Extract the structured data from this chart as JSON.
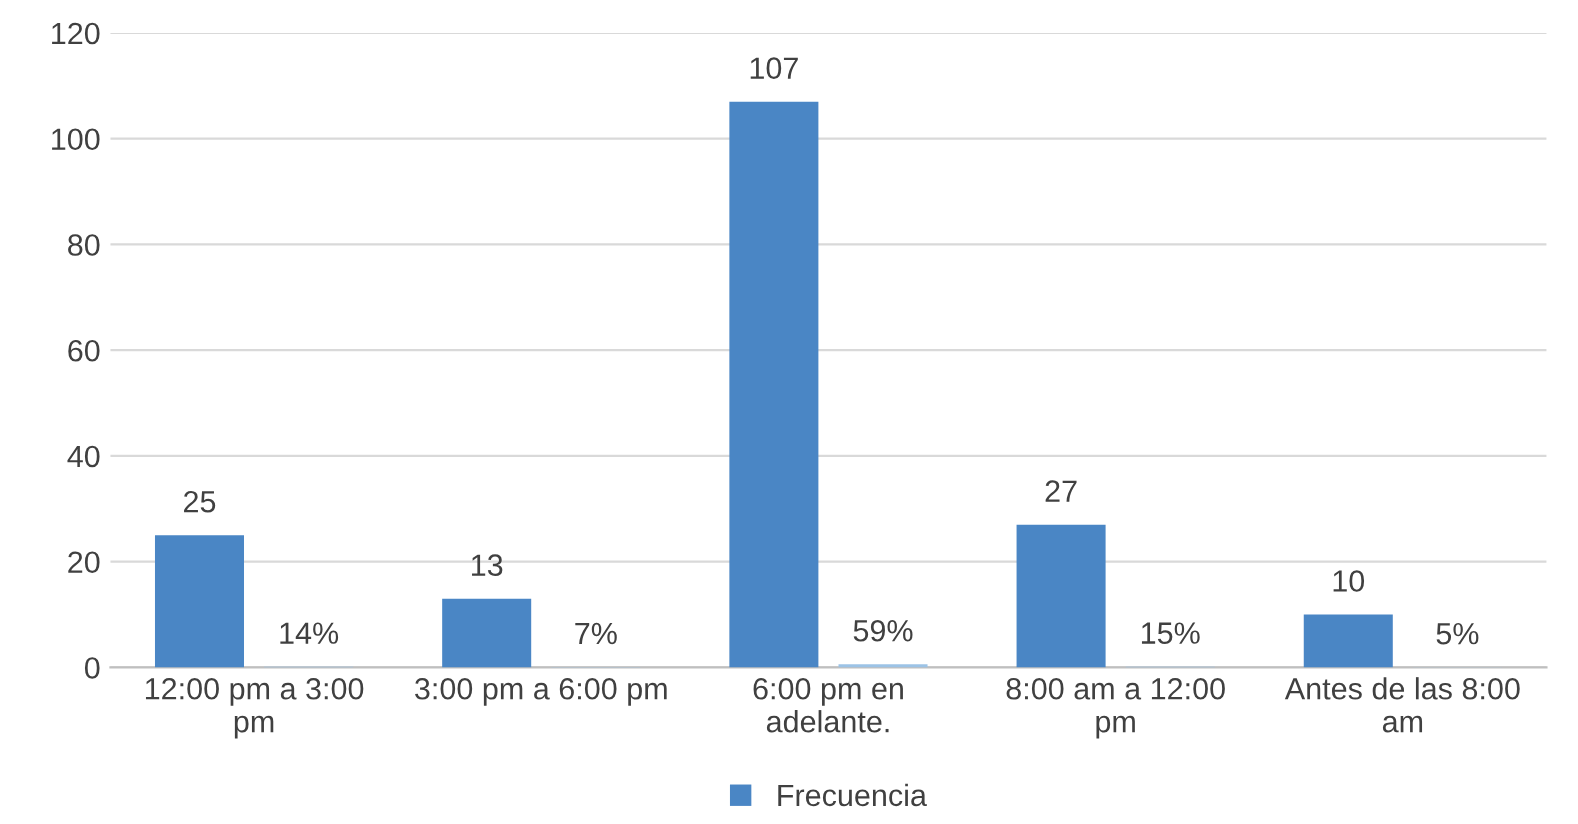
{
  "chart_data": {
    "type": "bar",
    "categories": [
      "12:00 pm a 3:00 pm",
      "3:00 pm a 6:00 pm",
      "6:00 pm en adelante.",
      "8:00 am a 12:00 pm",
      "Antes de las 8:00 am"
    ],
    "series": [
      {
        "name": "Frecuencia",
        "color": "#4a86c5",
        "values": [
          25,
          13,
          107,
          27,
          10
        ],
        "value_labels": [
          "25",
          "13",
          "107",
          "27",
          "10"
        ]
      },
      {
        "color": "#9cc3e6",
        "values": [
          0.14,
          0.07,
          0.59,
          0.15,
          0.05
        ],
        "value_labels": [
          "14%",
          "7%",
          "59%",
          "15%",
          "5%"
        ]
      }
    ],
    "ylim": [
      0,
      120
    ],
    "yticks": [
      0,
      20,
      40,
      60,
      80,
      100,
      120
    ],
    "grid": "y",
    "legend": "bottom"
  }
}
